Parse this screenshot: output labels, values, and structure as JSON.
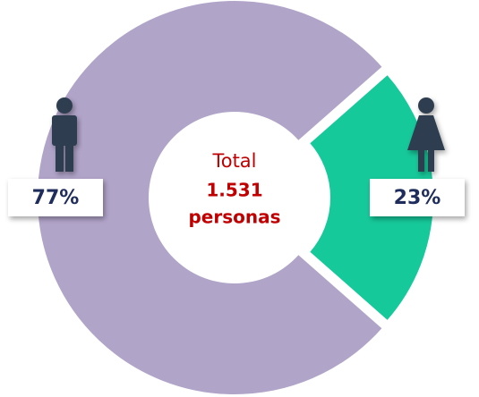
{
  "chart_data": {
    "type": "donut",
    "center_text": [
      "Total",
      "1.531",
      "personas"
    ],
    "values": [
      77,
      23
    ],
    "value_labels": [
      "77%",
      "23%"
    ],
    "colors": [
      "#b1a4c9",
      "#16c99a"
    ]
  }
}
